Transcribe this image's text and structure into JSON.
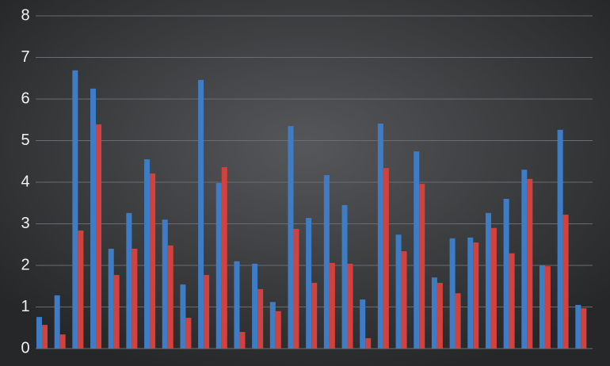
{
  "chart_data": {
    "type": "bar",
    "categories": [
      null,
      null,
      null,
      null,
      null,
      null,
      null,
      null,
      null,
      null,
      null,
      null,
      null,
      null,
      null,
      null,
      null,
      null,
      null,
      null,
      null,
      null,
      null,
      null,
      null,
      null,
      null,
      null,
      null,
      null,
      null
    ],
    "series": [
      {
        "color": "#3f7cc6",
        "values": [
          0.76,
          1.28,
          6.69,
          6.25,
          2.4,
          3.26,
          4.55,
          3.1,
          1.54,
          6.46,
          3.98,
          2.1,
          2.04,
          1.12,
          5.35,
          3.14,
          4.17,
          3.45,
          1.18,
          5.41,
          2.74,
          4.74,
          1.71,
          2.65,
          2.67,
          3.26,
          3.6,
          4.3,
          2.0,
          5.26,
          1.05
        ]
      },
      {
        "color": "#d2413b",
        "values": [
          0.57,
          0.34,
          2.84,
          5.39,
          1.77,
          2.4,
          4.21,
          2.48,
          0.74,
          1.77,
          4.36,
          0.4,
          1.43,
          0.9,
          2.88,
          1.58,
          2.06,
          2.04,
          0.25,
          4.34,
          2.34,
          3.96,
          1.58,
          1.33,
          2.55,
          2.9,
          2.29,
          4.08,
          1.98,
          3.22,
          0.97
        ]
      }
    ],
    "ylim": [
      0,
      8
    ],
    "yticks": [
      0,
      1,
      2,
      3,
      4,
      5,
      6,
      7,
      8
    ],
    "grid": true
  }
}
